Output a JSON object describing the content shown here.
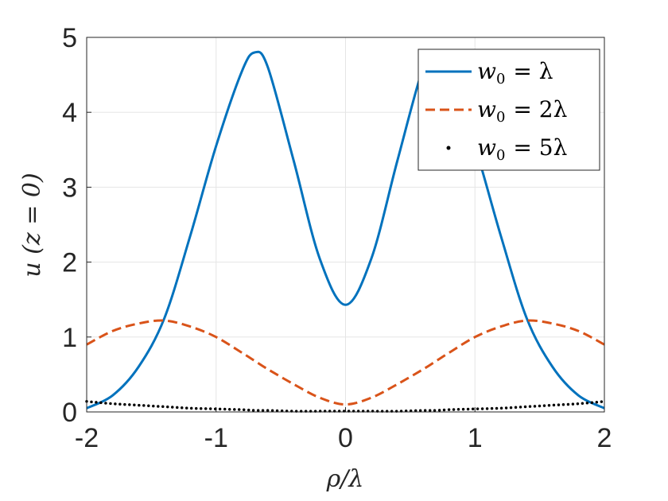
{
  "chart_data": {
    "type": "line",
    "title": "",
    "xlabel": "ρ/λ",
    "ylabel": "u (z = 0)",
    "xlim": [
      -2,
      2
    ],
    "ylim": [
      0,
      5
    ],
    "xticks": [
      "-2",
      "-1",
      "0",
      "1",
      "2"
    ],
    "yticks": [
      "0",
      "1",
      "2",
      "3",
      "4",
      "5"
    ],
    "grid": true,
    "legend_position": "top-right",
    "x": [
      -2.0,
      -1.8,
      -1.6,
      -1.4,
      -1.2,
      -1.0,
      -0.8,
      -0.7,
      -0.6,
      -0.4,
      -0.2,
      0.0,
      0.2,
      0.4,
      0.6,
      0.7,
      0.8,
      1.0,
      1.2,
      1.4,
      1.6,
      1.8,
      2.0
    ],
    "series": [
      {
        "name": "w0 = λ",
        "style": "solid",
        "color": "#0072BD",
        "values": [
          0.05,
          0.22,
          0.6,
          1.25,
          2.35,
          3.55,
          4.55,
          4.8,
          4.6,
          3.35,
          2.05,
          1.43,
          2.05,
          3.35,
          4.6,
          4.8,
          4.55,
          3.55,
          2.35,
          1.25,
          0.6,
          0.22,
          0.05
        ]
      },
      {
        "name": "w0 = 2λ",
        "style": "dashed",
        "color": "#D95319",
        "values": [
          0.9,
          1.08,
          1.18,
          1.22,
          1.14,
          1.0,
          0.79,
          0.68,
          0.57,
          0.37,
          0.19,
          0.1,
          0.19,
          0.37,
          0.57,
          0.68,
          0.79,
          1.0,
          1.14,
          1.22,
          1.18,
          1.08,
          0.9
        ]
      },
      {
        "name": "w0 = 5λ",
        "style": "dotted",
        "color": "#000000",
        "values": [
          0.14,
          0.11,
          0.09,
          0.07,
          0.05,
          0.04,
          0.03,
          0.02,
          0.02,
          0.01,
          0.01,
          0.01,
          0.01,
          0.01,
          0.02,
          0.02,
          0.03,
          0.04,
          0.05,
          0.07,
          0.09,
          0.11,
          0.14
        ]
      }
    ]
  },
  "legend": [
    {
      "prefix": "w",
      "sub": "0",
      "rhs": "= λ"
    },
    {
      "prefix": "w",
      "sub": "0",
      "rhs": "= 2λ"
    },
    {
      "prefix": "w",
      "sub": "0",
      "rhs": "= 5λ"
    }
  ]
}
